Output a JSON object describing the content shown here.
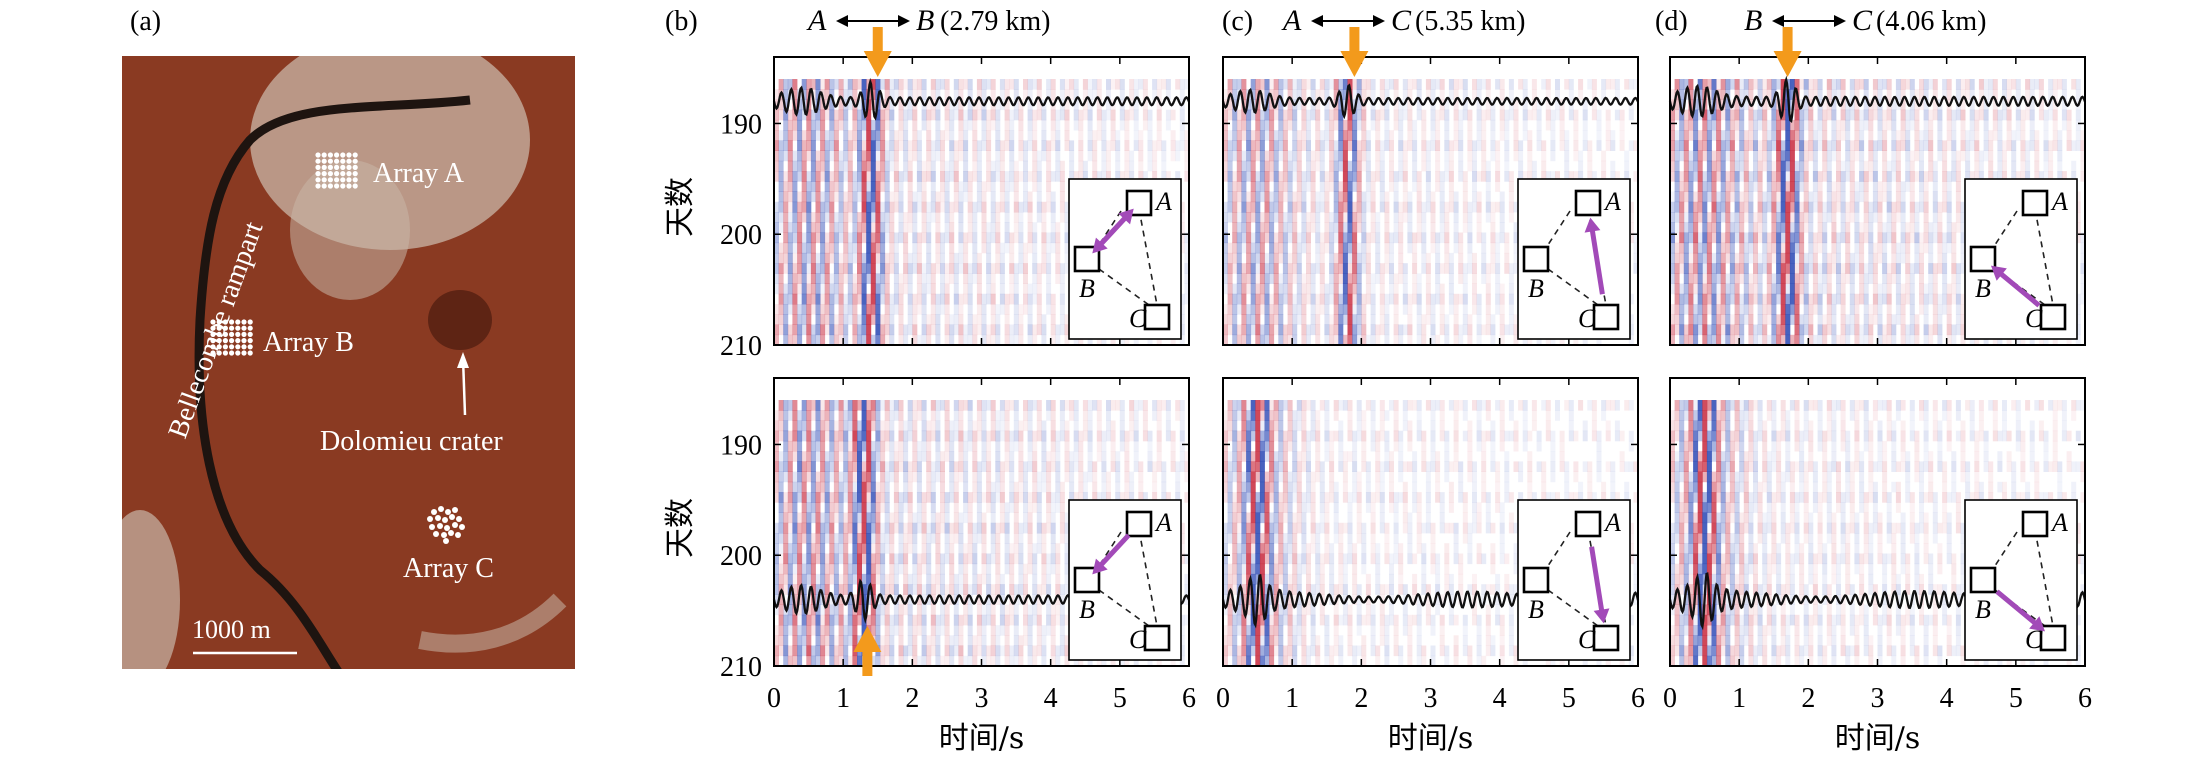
{
  "colors": {
    "arrow_orange": "#f39a1c",
    "arrow_purple": "#a24ab8",
    "red": "#c8283c",
    "blue": "#2846b4",
    "map_ground": "#8a3a22",
    "map_light": "#c9b7a8",
    "map_rampart": "#1e1410"
  },
  "panel_a": {
    "label": "(a)",
    "rampart_label": "Bellecombe rampart",
    "array_labels": [
      "Array A",
      "Array B",
      "Array C"
    ],
    "crater_label": "Dolomieu crater",
    "scale_label": "1000 m"
  },
  "headers": [
    {
      "label": "(b)",
      "from": "A",
      "to": "B",
      "dist": "(2.79 km)"
    },
    {
      "label": "(c)",
      "from": "A",
      "to": "C",
      "dist": "(5.35 km)"
    },
    {
      "label": "(d)",
      "from": "B",
      "to": "C",
      "dist": "(4.06 km)"
    }
  ],
  "axes": {
    "ylabel": "天数",
    "xlabel": "时间/s",
    "xticks": [
      "0",
      "1",
      "2",
      "3",
      "4",
      "5",
      "6"
    ],
    "yticks": [
      "190",
      "200",
      "210"
    ]
  },
  "inset_labels": {
    "a": "A",
    "b": "B",
    "c": "C"
  },
  "chart_data": [
    {
      "type": "heatmap",
      "panel": "b",
      "row": "top",
      "xlim": [
        0,
        6
      ],
      "ylim": [
        210,
        184
      ],
      "peak_time": 1.4,
      "arrow": "top",
      "arrow_time": 1.5,
      "stack_trace_day": 188,
      "inset_arrows": [
        "B-A",
        "A-B"
      ],
      "intensity": 0.75
    },
    {
      "type": "heatmap",
      "panel": "c",
      "row": "top",
      "xlim": [
        0,
        6
      ],
      "ylim": [
        210,
        184
      ],
      "peak_time": 1.8,
      "arrow": "top",
      "arrow_time": 1.9,
      "stack_trace_day": 188,
      "inset_arrows": [
        "C-A"
      ],
      "intensity": 0.45
    },
    {
      "type": "heatmap",
      "panel": "d",
      "row": "top",
      "xlim": [
        0,
        6
      ],
      "ylim": [
        210,
        184
      ],
      "peak_time": 1.7,
      "arrow": "top",
      "arrow_time": 1.7,
      "stack_trace_day": 188,
      "inset_arrows": [
        "C-B"
      ],
      "intensity": 1.0
    },
    {
      "type": "heatmap",
      "panel": "b",
      "row": "bottom",
      "xlim": [
        0,
        6
      ],
      "ylim": [
        210,
        184
      ],
      "peak_time": 1.3,
      "arrow": "bottom",
      "arrow_time": 1.35,
      "stack_trace_day": 204,
      "inset_arrows": [
        "A-B"
      ],
      "intensity": 0.85
    },
    {
      "type": "heatmap",
      "panel": "c",
      "row": "bottom",
      "xlim": [
        0,
        6
      ],
      "ylim": [
        210,
        184
      ],
      "peak_time": 0.5,
      "arrow": "none",
      "stack_trace_day": 204,
      "inset_arrows": [
        "A-C"
      ],
      "intensity": 0.25
    },
    {
      "type": "heatmap",
      "panel": "d",
      "row": "bottom",
      "xlim": [
        0,
        6
      ],
      "ylim": [
        210,
        184
      ],
      "peak_time": 0.5,
      "arrow": "none",
      "stack_trace_day": 204,
      "inset_arrows": [
        "B-C"
      ],
      "intensity": 0.35
    }
  ]
}
